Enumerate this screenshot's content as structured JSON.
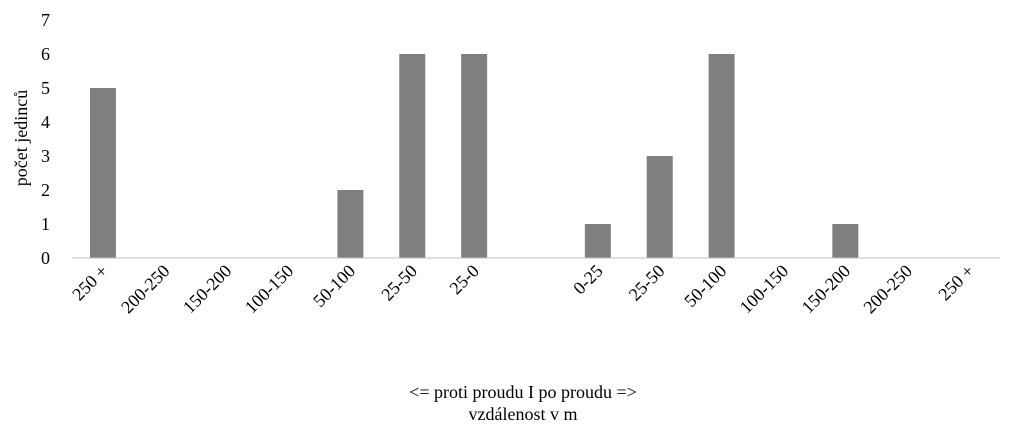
{
  "chart_data": {
    "type": "bar",
    "categories": [
      "250 +",
      "200-250",
      "150-200",
      "100-150",
      "50-100",
      "25-50",
      "25-0",
      "",
      "0-25",
      "25-50",
      "50-100",
      "100-150",
      "150-200",
      "200-250",
      "250 +"
    ],
    "values": [
      5,
      0,
      0,
      0,
      2,
      6,
      6,
      null,
      1,
      3,
      6,
      0,
      1,
      0,
      0
    ],
    "ylabel": "počet jedinců",
    "xlabel_line1": "<= proti proudu I po proudu =>",
    "xlabel_line2": "vzdálenost v m",
    "ylim": [
      0,
      7
    ],
    "yticks": [
      0,
      1,
      2,
      3,
      4,
      5,
      6,
      7
    ],
    "grid": false,
    "bar_color": "#7f7f7f",
    "axis_color": "#bfbfbf"
  }
}
